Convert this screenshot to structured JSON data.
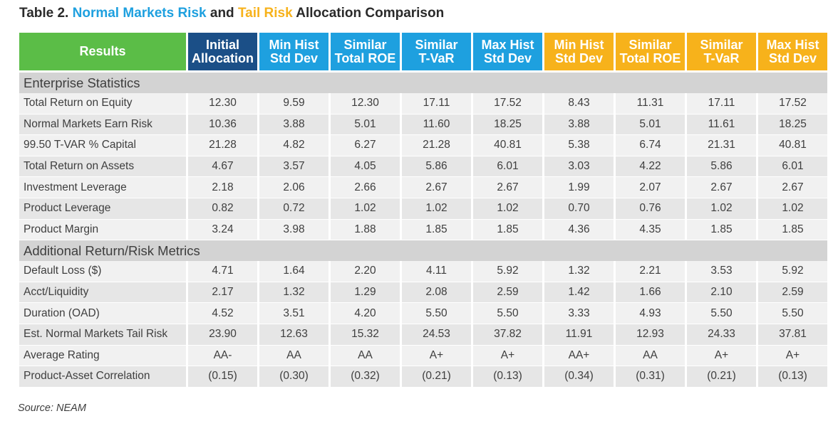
{
  "title": {
    "prefix": "Table 2. ",
    "normal_risk": "Normal Markets Risk",
    "conj": " and ",
    "tail_risk": "Tail Risk",
    "suffix": " Allocation Comparison"
  },
  "headers": {
    "results": "Results",
    "columns": [
      {
        "line1": "Initial",
        "line2": "Allocation",
        "color": "#1b4f87"
      },
      {
        "line1": "Min Hist",
        "line2": "Std Dev",
        "color": "#1ea0df"
      },
      {
        "line1": "Similar",
        "line2": "Total ROE",
        "color": "#1ea0df"
      },
      {
        "line1": "Similar",
        "line2": "T-VaR",
        "color": "#1ea0df"
      },
      {
        "line1": "Max Hist",
        "line2": "Std Dev",
        "color": "#1ea0df"
      },
      {
        "line1": "Min Hist",
        "line2": "Std Dev",
        "color": "#f7b21b"
      },
      {
        "line1": "Similar",
        "line2": "Total ROE",
        "color": "#f7b21b"
      },
      {
        "line1": "Similar",
        "line2": "T-VaR",
        "color": "#f7b21b"
      },
      {
        "line1": "Max Hist",
        "line2": "Std Dev",
        "color": "#f7b21b"
      }
    ]
  },
  "sections": [
    {
      "title": "Enterprise Statistics",
      "rows": [
        {
          "label": "Total Return on Equity",
          "values": [
            "12.30",
            "9.59",
            "12.30",
            "17.11",
            "17.52",
            "8.43",
            "11.31",
            "17.11",
            "17.52"
          ]
        },
        {
          "label": "Normal Markets Earn Risk",
          "values": [
            "10.36",
            "3.88",
            "5.01",
            "11.60",
            "18.25",
            "3.88",
            "5.01",
            "11.61",
            "18.25"
          ]
        },
        {
          "label": "99.50 T-VAR % Capital",
          "values": [
            "21.28",
            "4.82",
            "6.27",
            "21.28",
            "40.81",
            "5.38",
            "6.74",
            "21.31",
            "40.81"
          ]
        },
        {
          "label": "Total Return on Assets",
          "values": [
            "4.67",
            "3.57",
            "4.05",
            "5.86",
            "6.01",
            "3.03",
            "4.22",
            "5.86",
            "6.01"
          ]
        },
        {
          "label": "Investment Leverage",
          "values": [
            "2.18",
            "2.06",
            "2.66",
            "2.67",
            "2.67",
            "1.99",
            "2.07",
            "2.67",
            "2.67"
          ]
        },
        {
          "label": "Product Leverage",
          "values": [
            "0.82",
            "0.72",
            "1.02",
            "1.02",
            "1.02",
            "0.70",
            "0.76",
            "1.02",
            "1.02"
          ]
        },
        {
          "label": "Product Margin",
          "values": [
            "3.24",
            "3.98",
            "1.88",
            "1.85",
            "1.85",
            "4.36",
            "4.35",
            "1.85",
            "1.85"
          ]
        }
      ]
    },
    {
      "title": "Additional Return/Risk Metrics",
      "rows": [
        {
          "label": "Default Loss ($)",
          "values": [
            "4.71",
            "1.64",
            "2.20",
            "4.11",
            "5.92",
            "1.32",
            "2.21",
            "3.53",
            "5.92"
          ]
        },
        {
          "label": "Acct/Liquidity",
          "values": [
            "2.17",
            "1.32",
            "1.29",
            "2.08",
            "2.59",
            "1.42",
            "1.66",
            "2.10",
            "2.59"
          ]
        },
        {
          "label": "Duration (OAD)",
          "values": [
            "4.52",
            "3.51",
            "4.20",
            "5.50",
            "5.50",
            "3.33",
            "4.93",
            "5.50",
            "5.50"
          ]
        },
        {
          "label": "Est. Normal Markets Tail Risk",
          "values": [
            "23.90",
            "12.63",
            "15.32",
            "24.53",
            "37.82",
            "11.91",
            "12.93",
            "24.33",
            "37.81"
          ]
        },
        {
          "label": "Average Rating",
          "values": [
            "AA-",
            "AA",
            "AA",
            "A+",
            "A+",
            "AA+",
            "AA",
            "A+",
            "A+"
          ]
        },
        {
          "label": "Product-Asset Correlation",
          "values": [
            "(0.15)",
            "(0.30)",
            "(0.32)",
            "(0.21)",
            "(0.13)",
            "(0.34)",
            "(0.31)",
            "(0.21)",
            "(0.13)"
          ]
        }
      ]
    }
  ],
  "source": "Source: NEAM"
}
